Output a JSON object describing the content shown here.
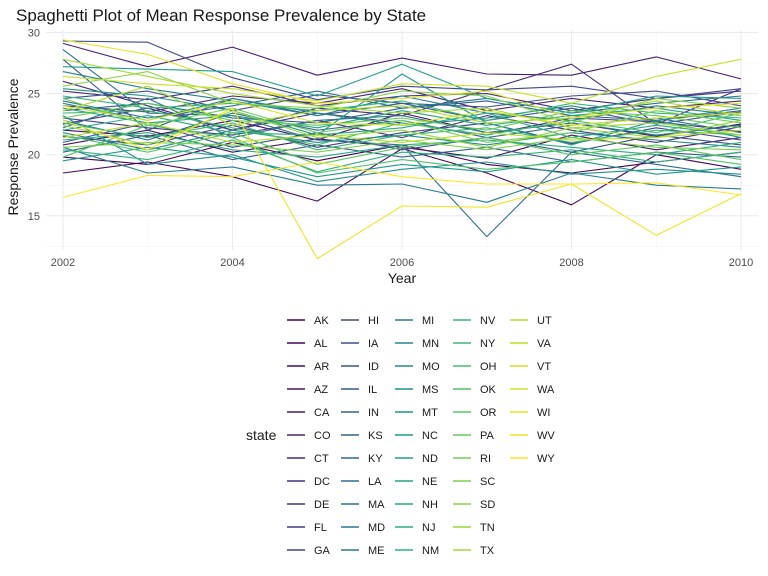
{
  "chart_data": {
    "type": "line",
    "title": "Spaghetti Plot of Mean Response Prevalence by State",
    "xlabel": "Year",
    "ylabel": "Response Prevalence",
    "x": [
      2002,
      2003,
      2004,
      2005,
      2006,
      2007,
      2008,
      2009,
      2010
    ],
    "xticks": [
      "2002",
      "2004",
      "2006",
      "2008",
      "2010"
    ],
    "yticks": [
      "15",
      "20",
      "25",
      "30"
    ],
    "xlim": [
      2001.8,
      2010.2
    ],
    "ylim": [
      12.2,
      30.2
    ],
    "grid": true,
    "legend": {
      "title": "state",
      "position": "bottom",
      "columns": 5
    },
    "colormap": "viridis",
    "series": [
      {
        "name": "AK",
        "values": [
          19.8,
          19.2,
          21.0,
          19.5,
          20.8,
          19.2,
          18.5,
          19.4,
          20.2
        ]
      },
      {
        "name": "AL",
        "values": [
          18.5,
          19.4,
          18.2,
          16.2,
          20.5,
          18.5,
          15.9,
          20.0,
          18.8
        ]
      },
      {
        "name": "AR",
        "values": [
          22.0,
          21.5,
          22.8,
          21.2,
          23.4,
          21.8,
          22.6,
          21.5,
          22.5
        ]
      },
      {
        "name": "AZ",
        "values": [
          20.8,
          22.0,
          20.2,
          21.3,
          20.6,
          19.7,
          21.6,
          20.4,
          21.4
        ]
      },
      {
        "name": "CA",
        "values": [
          29.1,
          27.2,
          28.8,
          26.5,
          27.9,
          26.6,
          26.5,
          28.0,
          26.2
        ]
      },
      {
        "name": "CO",
        "values": [
          24.0,
          23.5,
          24.8,
          24.2,
          25.4,
          23.6,
          24.6,
          23.8,
          24.4
        ]
      },
      {
        "name": "CT",
        "values": [
          26.0,
          24.0,
          22.0,
          23.8,
          23.2,
          25.3,
          27.4,
          22.5,
          25.4
        ]
      },
      {
        "name": "DC",
        "values": [
          25.2,
          24.5,
          25.6,
          24.0,
          24.8,
          25.0,
          23.6,
          24.6,
          25.2
        ]
      },
      {
        "name": "DE",
        "values": [
          23.0,
          22.2,
          21.6,
          22.8,
          21.4,
          23.2,
          22.0,
          21.0,
          22.3
        ]
      },
      {
        "name": "FL",
        "values": [
          22.5,
          23.8,
          22.0,
          23.4,
          22.6,
          21.6,
          23.0,
          22.7,
          21.9
        ]
      },
      {
        "name": "GA",
        "values": [
          21.5,
          20.8,
          22.4,
          20.6,
          21.8,
          22.6,
          20.9,
          22.2,
          21.2
        ]
      },
      {
        "name": "HI",
        "values": [
          29.3,
          29.2,
          26.3,
          24.5,
          25.6,
          25.3,
          25.6,
          24.6,
          25.4
        ]
      },
      {
        "name": "IA",
        "values": [
          24.6,
          25.2,
          23.6,
          24.9,
          24.2,
          23.9,
          24.8,
          25.2,
          24.0
        ]
      },
      {
        "name": "ID",
        "values": [
          21.0,
          22.6,
          20.6,
          21.8,
          20.4,
          21.4,
          20.2,
          21.6,
          20.8
        ]
      },
      {
        "name": "IL",
        "values": [
          27.8,
          22.0,
          24.6,
          23.2,
          24.2,
          22.8,
          23.8,
          22.5,
          23.5
        ]
      },
      {
        "name": "IN",
        "values": [
          23.6,
          24.2,
          23.0,
          22.6,
          23.8,
          24.4,
          23.2,
          22.8,
          23.6
        ]
      },
      {
        "name": "KS",
        "values": [
          20.2,
          21.6,
          19.6,
          20.8,
          19.8,
          20.6,
          19.4,
          20.2,
          19.8
        ]
      },
      {
        "name": "KY",
        "values": [
          22.8,
          21.2,
          23.4,
          22.0,
          22.8,
          21.4,
          22.4,
          23.0,
          21.8
        ]
      },
      {
        "name": "LA",
        "values": [
          28.6,
          23.4,
          23.2,
          21.2,
          20.8,
          13.3,
          20.2,
          19.2,
          18.2
        ]
      },
      {
        "name": "MA",
        "values": [
          24.4,
          23.0,
          24.0,
          25.2,
          23.8,
          24.6,
          23.4,
          24.2,
          24.8
        ]
      },
      {
        "name": "MD",
        "values": [
          22.2,
          24.6,
          21.4,
          22.8,
          23.2,
          21.8,
          22.6,
          21.6,
          22.4
        ]
      },
      {
        "name": "ME",
        "values": [
          20.6,
          18.5,
          19.0,
          17.5,
          17.6,
          16.1,
          18.5,
          17.5,
          17.2
        ]
      },
      {
        "name": "MI",
        "values": [
          26.8,
          25.4,
          24.4,
          23.2,
          24.8,
          23.4,
          22.8,
          24.0,
          23.2
        ]
      },
      {
        "name": "MN",
        "values": [
          24.2,
          22.8,
          24.6,
          23.4,
          22.4,
          23.0,
          24.0,
          22.8,
          23.8
        ]
      },
      {
        "name": "MO",
        "values": [
          21.8,
          20.4,
          22.0,
          21.0,
          21.6,
          20.8,
          21.8,
          21.2,
          20.6
        ]
      },
      {
        "name": "MS",
        "values": [
          23.2,
          19.2,
          20.0,
          17.8,
          18.8,
          19.4,
          18.4,
          18.8,
          18.4
        ]
      },
      {
        "name": "MT",
        "values": [
          25.4,
          24.8,
          23.6,
          21.6,
          26.6,
          22.6,
          20.8,
          22.8,
          21.4
        ]
      },
      {
        "name": "NC",
        "values": [
          19.5,
          20.6,
          19.8,
          18.2,
          19.2,
          18.6,
          19.6,
          18.4,
          19.0
        ]
      },
      {
        "name": "ND",
        "values": [
          27.2,
          27.0,
          26.8,
          24.8,
          27.4,
          24.6,
          23.4,
          24.8,
          24.6
        ]
      },
      {
        "name": "NE",
        "values": [
          23.8,
          22.6,
          23.2,
          22.2,
          23.6,
          22.4,
          23.2,
          23.8,
          22.8
        ]
      },
      {
        "name": "NH",
        "values": [
          22.0,
          23.2,
          21.8,
          21.6,
          22.2,
          23.4,
          21.4,
          22.4,
          21.6
        ]
      },
      {
        "name": "NJ",
        "values": [
          21.2,
          21.8,
          20.4,
          19.8,
          20.8,
          21.2,
          20.6,
          20.0,
          21.0
        ]
      },
      {
        "name": "NM",
        "values": [
          20.4,
          19.6,
          21.2,
          18.6,
          20.2,
          19.8,
          20.4,
          19.4,
          20.2
        ]
      },
      {
        "name": "NV",
        "values": [
          24.8,
          23.8,
          24.2,
          23.6,
          24.4,
          22.8,
          24.2,
          23.4,
          23.0
        ]
      },
      {
        "name": "NY",
        "values": [
          22.6,
          21.4,
          22.6,
          20.4,
          21.6,
          22.2,
          21.0,
          22.0,
          21.6
        ]
      },
      {
        "name": "OH",
        "values": [
          23.4,
          23.6,
          22.2,
          20.8,
          22.6,
          21.6,
          22.8,
          21.8,
          23.4
        ]
      },
      {
        "name": "OK",
        "values": [
          19.8,
          22.4,
          21.4,
          18.5,
          19.6,
          18.8,
          19.4,
          20.2,
          19.2
        ]
      },
      {
        "name": "OR",
        "values": [
          21.6,
          20.2,
          21.8,
          19.2,
          20.6,
          21.4,
          20.0,
          20.8,
          19.6
        ]
      },
      {
        "name": "PA",
        "values": [
          23.0,
          24.2,
          22.8,
          22.4,
          23.0,
          22.0,
          23.6,
          23.2,
          22.2
        ]
      },
      {
        "name": "RI",
        "values": [
          24.6,
          22.4,
          23.8,
          21.8,
          22.8,
          21.0,
          21.8,
          23.6,
          22.6
        ]
      },
      {
        "name": "SC",
        "values": [
          20.6,
          21.0,
          20.8,
          20.2,
          21.2,
          20.4,
          21.4,
          20.6,
          20.4
        ]
      },
      {
        "name": "SD",
        "values": [
          25.6,
          26.8,
          24.2,
          23.8,
          25.2,
          24.8,
          22.6,
          24.6,
          23.8
        ]
      },
      {
        "name": "TN",
        "values": [
          22.4,
          20.8,
          23.6,
          21.4,
          22.0,
          20.6,
          22.2,
          21.4,
          22.8
        ]
      },
      {
        "name": "TX",
        "values": [
          27.8,
          26.4,
          25.0,
          24.0,
          23.4,
          23.8,
          22.2,
          22.6,
          21.6
        ]
      },
      {
        "name": "UT",
        "values": [
          23.6,
          25.6,
          22.4,
          23.6,
          24.0,
          22.6,
          23.0,
          24.4,
          23.2
        ]
      },
      {
        "name": "VA",
        "values": [
          21.4,
          22.6,
          21.0,
          21.6,
          21.0,
          21.8,
          21.2,
          21.4,
          22.0
        ]
      },
      {
        "name": "VT",
        "values": [
          26.4,
          25.8,
          25.4,
          24.4,
          25.8,
          25.6,
          24.2,
          26.4,
          27.8
        ]
      },
      {
        "name": "WA",
        "values": [
          24.0,
          22.8,
          24.4,
          22.6,
          22.4,
          23.6,
          22.4,
          23.0,
          23.4
        ]
      },
      {
        "name": "WI",
        "values": [
          29.4,
          28.2,
          25.8,
          24.2,
          24.6,
          25.2,
          23.0,
          23.8,
          24.2
        ]
      },
      {
        "name": "WV",
        "values": [
          22.8,
          20.4,
          23.8,
          11.5,
          15.8,
          15.7,
          17.6,
          13.4,
          16.8
        ]
      },
      {
        "name": "WY",
        "values": [
          16.5,
          18.3,
          18.2,
          19.4,
          18.2,
          17.6,
          17.6,
          17.7,
          16.7
        ]
      }
    ]
  }
}
